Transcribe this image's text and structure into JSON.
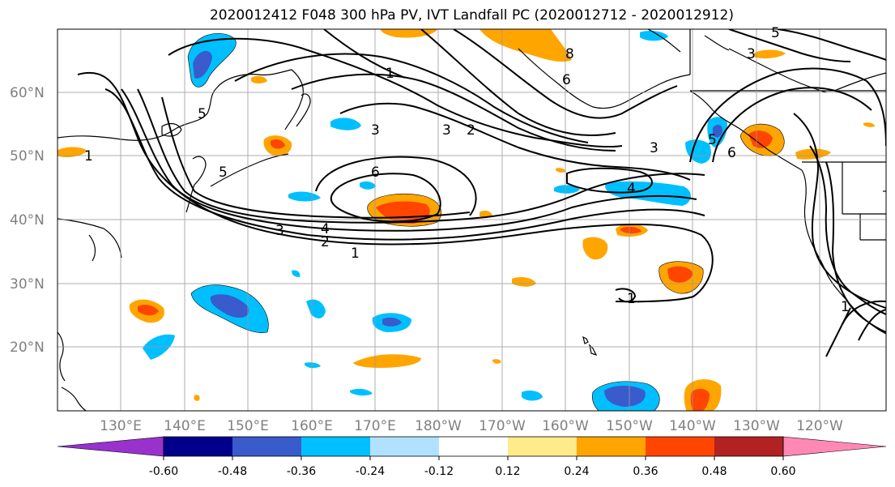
{
  "title": "2020012412 F048 300 hPa PV, IVT Landfall PC (2020012712 - 2020012912)",
  "lat_labels": [
    "60°N",
    "50°N",
    "40°N",
    "30°N",
    "20°N"
  ],
  "lon_labels": [
    "130°E",
    "140°E",
    "150°E",
    "160°E",
    "170°E",
    "180°W",
    "170°W",
    "160°W",
    "150°W",
    "140°W",
    "130°W",
    "120°W"
  ],
  "colorbar": {
    "colors": [
      "#9932CC",
      "#00008B",
      "#3A5BCC",
      "#00BFFF",
      "#B0E2FF",
      "#FFFFFF",
      "#FFEB8A",
      "#FFA500",
      "#FF4500",
      "#B22222",
      "#FF89B4"
    ],
    "tick_labels": [
      "-0.60",
      "-0.48",
      "-0.36",
      "-0.24",
      "-0.12",
      "0.12",
      "0.24",
      "0.36",
      "0.48",
      "0.60"
    ]
  },
  "contour_labels": [
    {
      "text": "1"
    },
    {
      "text": "1"
    },
    {
      "text": "2"
    },
    {
      "text": "3"
    },
    {
      "text": "4"
    },
    {
      "text": "3"
    },
    {
      "text": "6"
    },
    {
      "text": "3"
    },
    {
      "text": "2"
    },
    {
      "text": "5"
    },
    {
      "text": "5"
    },
    {
      "text": "1"
    },
    {
      "text": "3"
    },
    {
      "text": "5"
    },
    {
      "text": "6"
    },
    {
      "text": "8"
    },
    {
      "text": "6"
    },
    {
      "text": "3"
    },
    {
      "text": "5"
    },
    {
      "text": "4"
    },
    {
      "text": "1"
    },
    {
      "text": "1"
    }
  ]
}
